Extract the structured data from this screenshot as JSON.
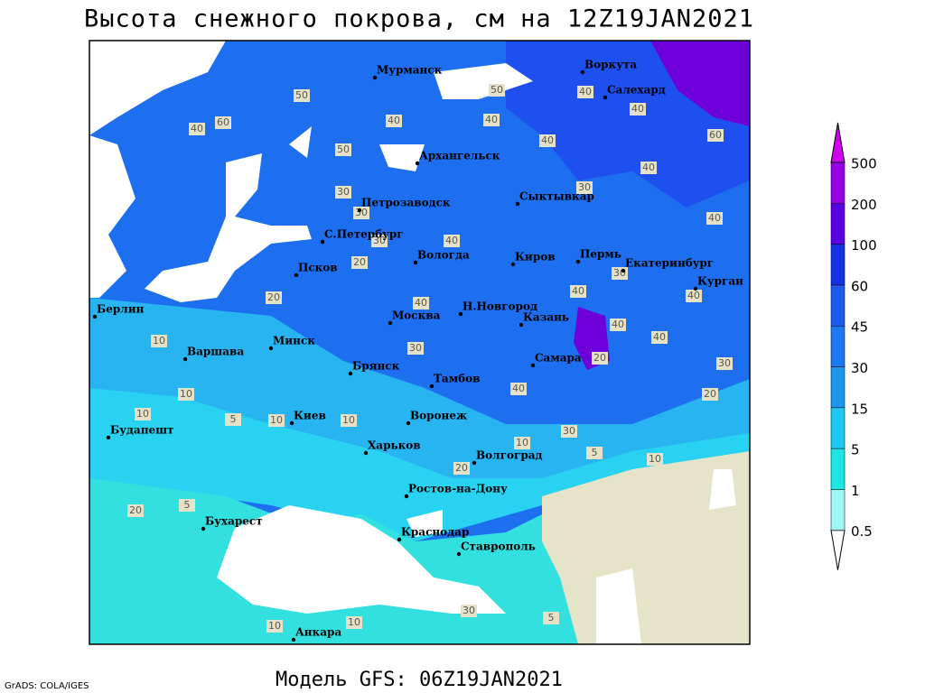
{
  "title": "Высота снежного покрова, см на 12Z19JAN2021",
  "model_label": "Модель GFS: 06Z19JAN2021",
  "credit": "GrADS: COLA/IGES",
  "legend": {
    "levels": [
      0.5,
      1,
      5,
      15,
      30,
      45,
      60,
      100,
      200,
      500
    ],
    "colors": [
      "#ffffff",
      "#a0f5f5",
      "#1ee6e6",
      "#1ec8f0",
      "#1e96f0",
      "#1e78f0",
      "#1e5af0",
      "#1432e6",
      "#5a00e6",
      "#9600e6",
      "#d200f0"
    ]
  },
  "cities": [
    "Мурманск",
    "Воркута",
    "Салехард",
    "Архангельск",
    "Сыктывкар",
    "Петрозаводск",
    "С.Петербург",
    "Вологда",
    "Киров",
    "Пермь",
    "Екатеринбург",
    "Курган",
    "Псков",
    "Н.Новгород",
    "Москва",
    "Казань",
    "Берлин",
    "Минск",
    "Варшава",
    "Самара",
    "Брянск",
    "Тамбов",
    "Киев",
    "Воронеж",
    "Будапешт",
    "Харьков",
    "Волгоград",
    "Ростов-на-Дону",
    "Бухарест",
    "Краснодар",
    "Ставрополь",
    "Анкара"
  ],
  "contour_labels": [
    40,
    60,
    50,
    50,
    40,
    30,
    50,
    40,
    40,
    40,
    40,
    60,
    40,
    30,
    40,
    30,
    30,
    40,
    20,
    30,
    40,
    20,
    40,
    40,
    40,
    40,
    10,
    30,
    20,
    30,
    20,
    10,
    40,
    10,
    5,
    10,
    10,
    30,
    10,
    5,
    10,
    20,
    20,
    5,
    10,
    10,
    30,
    5
  ]
}
